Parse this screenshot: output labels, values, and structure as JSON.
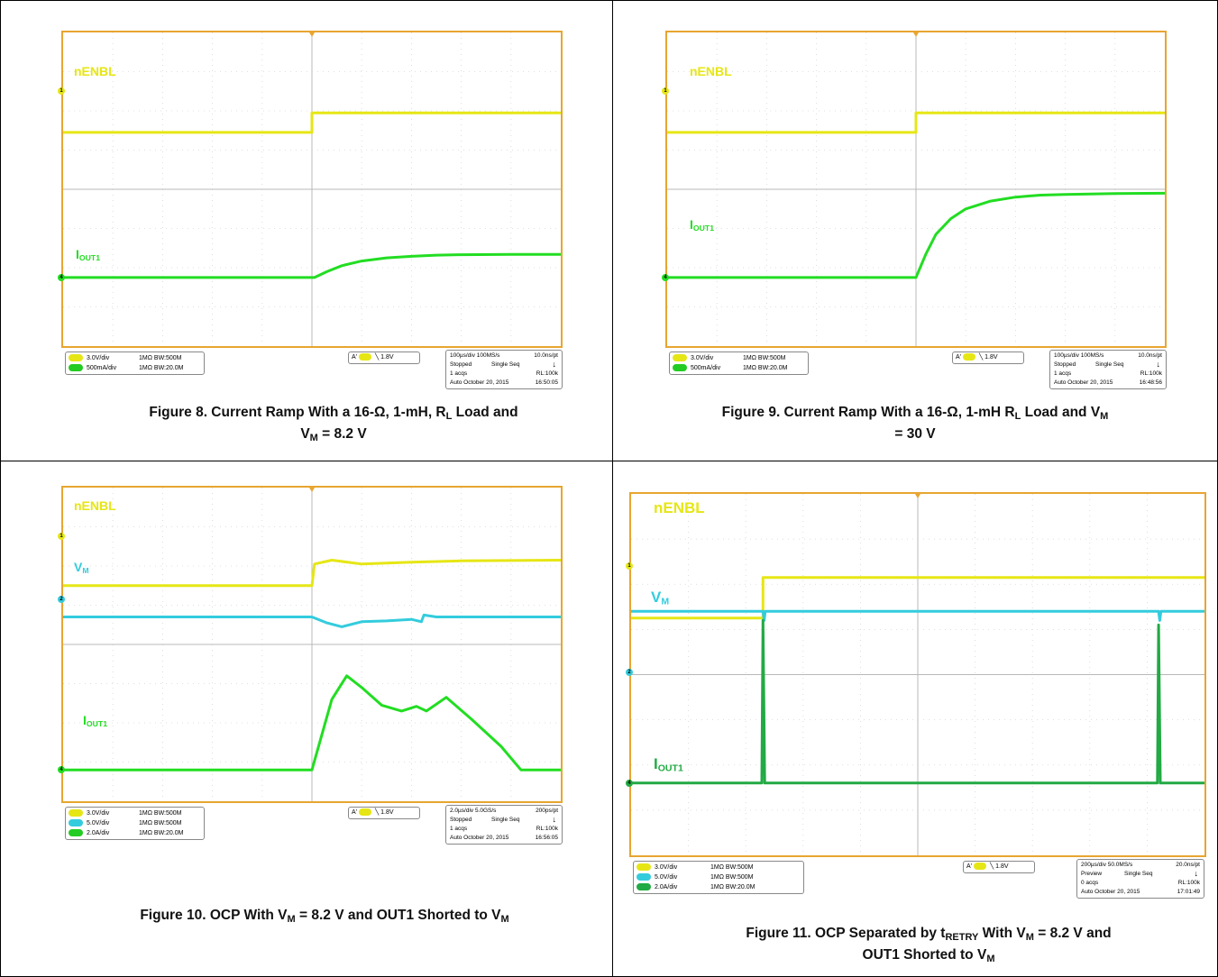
{
  "chart_data": [
    {
      "type": "line",
      "figure": "fig8",
      "series": [
        {
          "name": "nENBL",
          "label_main": "nENBL",
          "label_sub": "",
          "color": "#e6e615",
          "points": [
            [
              0,
              -1.05
            ],
            [
              5,
              -1.05
            ],
            [
              5,
              -0.55
            ],
            [
              10,
              -0.55
            ]
          ]
        },
        {
          "name": "IOUT1",
          "label_main": "I",
          "label_sub": "OUT1",
          "color": "#22dd22",
          "points": [
            [
              0,
              0
            ],
            [
              5.05,
              0
            ],
            [
              5.3,
              0.15
            ],
            [
              5.6,
              0.3
            ],
            [
              6,
              0.42
            ],
            [
              6.5,
              0.5
            ],
            [
              7,
              0.54
            ],
            [
              7.5,
              0.57
            ],
            [
              8,
              0.58
            ],
            [
              9,
              0.59
            ],
            [
              10,
              0.59
            ]
          ]
        }
      ],
      "channels": [
        {
          "name": "C1",
          "scale": "3.0V/div",
          "imp": "1MΩ",
          "bw": "BW:500M",
          "color": "#e6e615"
        },
        {
          "name": "C4",
          "scale": "500mA/div",
          "imp": "1MΩ",
          "bw": "BW:20.0M",
          "color": "#22cc22"
        }
      ],
      "trigger": {
        "label": "A'",
        "channel": "C1",
        "level": "1.8V"
      },
      "timebase": {
        "timediv": "100µs/div",
        "rate": "100MS/s",
        "pt": "10.0ns/pt",
        "state": "Stopped",
        "mode": "Single Seq",
        "acqs": "1 acqs",
        "rl": "RL:100k",
        "auto": "Auto",
        "date": "October 20, 2015",
        "time": "16:50:05"
      }
    },
    {
      "type": "line",
      "figure": "fig9",
      "series": [
        {
          "name": "nENBL",
          "label_main": "nENBL",
          "label_sub": "",
          "color": "#e6e615",
          "points": [
            [
              0,
              -1.05
            ],
            [
              5,
              -1.05
            ],
            [
              5,
              -0.55
            ],
            [
              10,
              -0.55
            ]
          ]
        },
        {
          "name": "IOUT1",
          "label_main": "I",
          "label_sub": "OUT1",
          "color": "#22dd22",
          "points": [
            [
              0,
              0
            ],
            [
              5,
              0
            ],
            [
              5.2,
              0.6
            ],
            [
              5.4,
              1.1
            ],
            [
              5.7,
              1.5
            ],
            [
              6,
              1.75
            ],
            [
              6.5,
              1.95
            ],
            [
              7,
              2.05
            ],
            [
              7.5,
              2.1
            ],
            [
              8,
              2.12
            ],
            [
              9,
              2.14
            ],
            [
              10,
              2.15
            ]
          ]
        }
      ],
      "channels": [
        {
          "name": "C1",
          "scale": "3.0V/div",
          "imp": "1MΩ",
          "bw": "BW:500M",
          "color": "#e6e615"
        },
        {
          "name": "C4",
          "scale": "500mA/div",
          "imp": "1MΩ",
          "bw": "BW:20.0M",
          "color": "#22cc22"
        }
      ],
      "trigger": {
        "label": "A'",
        "channel": "C1",
        "level": "1.8V"
      },
      "timebase": {
        "timediv": "100µs/div",
        "rate": "100MS/s",
        "pt": "10.0ns/pt",
        "state": "Stopped",
        "mode": "Single Seq",
        "acqs": "1 acqs",
        "rl": "RL:100k",
        "auto": "Auto",
        "date": "October 20, 2015",
        "time": "16:48:56"
      }
    },
    {
      "type": "line",
      "figure": "fig10",
      "series": [
        {
          "name": "nENBL",
          "label_main": "nENBL",
          "label_sub": "",
          "color": "#e6e615",
          "points": [
            [
              0,
              -1.25
            ],
            [
              5,
              -1.25
            ],
            [
              5.05,
              -0.7
            ],
            [
              5.4,
              -0.6
            ],
            [
              6,
              -0.7
            ],
            [
              7,
              -0.65
            ],
            [
              8,
              -0.62
            ],
            [
              10,
              -0.6
            ]
          ]
        },
        {
          "name": "VM",
          "label_main": "V",
          "label_sub": "M",
          "color": "#33ccdd",
          "points": [
            [
              0,
              0
            ],
            [
              5,
              0
            ],
            [
              5.3,
              -0.15
            ],
            [
              5.6,
              -0.25
            ],
            [
              6,
              -0.12
            ],
            [
              6.5,
              -0.1
            ],
            [
              7,
              -0.06
            ],
            [
              7.2,
              -0.12
            ],
            [
              7.25,
              0.05
            ],
            [
              7.5,
              0
            ],
            [
              10,
              0
            ]
          ]
        }
      ],
      "series_i": {
        "name": "IOUT1",
        "label_main": "I",
        "label_sub": "OUT1",
        "color": "#22dd22",
        "points": [
          [
            0,
            0
          ],
          [
            5,
            0
          ],
          [
            5.4,
            1.8
          ],
          [
            5.7,
            2.4
          ],
          [
            6,
            2.1
          ],
          [
            6.4,
            1.65
          ],
          [
            6.8,
            1.5
          ],
          [
            7.1,
            1.62
          ],
          [
            7.3,
            1.5
          ],
          [
            7.7,
            1.85
          ],
          [
            8.2,
            1.3
          ],
          [
            8.8,
            0.6
          ],
          [
            9.2,
            0
          ],
          [
            10,
            0
          ]
        ]
      },
      "channels": [
        {
          "name": "C1",
          "scale": "3.0V/div",
          "imp": "1MΩ",
          "bw": "BW:500M",
          "color": "#e6e615"
        },
        {
          "name": "C2",
          "scale": "5.0V/div",
          "imp": "1MΩ",
          "bw": "BW:500M",
          "color": "#33ccdd"
        },
        {
          "name": "C4",
          "scale": "2.0A/div",
          "imp": "1MΩ",
          "bw": "BW:20.0M",
          "color": "#22cc22"
        }
      ],
      "trigger": {
        "label": "A'",
        "channel": "C1",
        "level": "1.8V"
      },
      "timebase": {
        "timediv": "2.0µs/div",
        "rate": "5.0GS/s",
        "pt": "200ps/pt",
        "state": "Stopped",
        "mode": "Single Seq",
        "acqs": "1 acqs",
        "rl": "RL:100k",
        "auto": "Auto",
        "date": "October 20, 2015",
        "time": "16:56:05"
      }
    },
    {
      "type": "line",
      "figure": "fig11",
      "series": [
        {
          "name": "nENBL",
          "label_main": "nENBL",
          "label_sub": "",
          "color": "#e6e615",
          "points": [
            [
              0,
              -1.5
            ],
            [
              2.3,
              -1.5
            ],
            [
              2.3,
              -0.6
            ],
            [
              10,
              -0.6
            ]
          ]
        },
        {
          "name": "VM",
          "label_main": "V",
          "label_sub": "M",
          "color": "#33ccdd",
          "points": [
            [
              0,
              0
            ],
            [
              2.3,
              0
            ],
            [
              2.32,
              -0.2
            ],
            [
              2.34,
              0
            ],
            [
              9.2,
              0
            ],
            [
              9.22,
              -0.2
            ],
            [
              9.24,
              0
            ],
            [
              10,
              0
            ]
          ]
        }
      ],
      "series_i": {
        "name": "IOUT1",
        "label_main": "I",
        "label_sub": "OUT1",
        "color": "#22aa44",
        "points": [
          [
            0,
            0
          ],
          [
            2.28,
            0
          ],
          [
            2.3,
            3.6
          ],
          [
            2.33,
            0
          ],
          [
            9.18,
            0
          ],
          [
            9.2,
            3.5
          ],
          [
            9.23,
            0
          ],
          [
            10,
            0
          ]
        ]
      },
      "channels": [
        {
          "name": "C1",
          "scale": "3.0V/div",
          "imp": "1MΩ",
          "bw": "BW:500M",
          "color": "#e6e615"
        },
        {
          "name": "C2",
          "scale": "5.0V/div",
          "imp": "1MΩ",
          "bw": "BW:500M",
          "color": "#33ccdd"
        },
        {
          "name": "C4",
          "scale": "2.0A/div",
          "imp": "1MΩ",
          "bw": "BW:20.0M",
          "color": "#22aa44"
        }
      ],
      "trigger": {
        "label": "A'",
        "channel": "C1",
        "level": "1.8V"
      },
      "timebase": {
        "timediv": "200µs/div",
        "rate": "50.0MS/s",
        "pt": "20.0ns/pt",
        "state": "Preview",
        "mode": "Single Seq",
        "acqs": "0 acqs",
        "rl": "RL:100k",
        "auto": "Auto",
        "date": "October 20, 2015",
        "time": "17:01:49"
      }
    }
  ],
  "captions": {
    "fig8": {
      "a": "Figure 8. Current Ramp With a 16-Ω, 1-mH, R",
      "a_sub": "L",
      "b": " Load and",
      "c": "V",
      "c_sub": "M",
      "d": " = 8.2 V"
    },
    "fig9": {
      "a": "Figure 9. Current Ramp With a 16-Ω, 1-mH R",
      "a_sub": "L",
      "b": " Load and V",
      "b_sub": "M",
      "c": "= 30 V"
    },
    "fig10": {
      "a": "Figure 10. OCP With V",
      "a_sub": "M",
      "b": " = 8.2 V and OUT1 Shorted to V",
      "b_sub": "M"
    },
    "fig11": {
      "a": "Figure 11. OCP Separated by t",
      "a_sub": "RETRY",
      "b": " With V",
      "b_sub": "M",
      "c": " = 8.2 V and",
      "d": "OUT1 Shorted to V",
      "d_sub": "M"
    }
  }
}
